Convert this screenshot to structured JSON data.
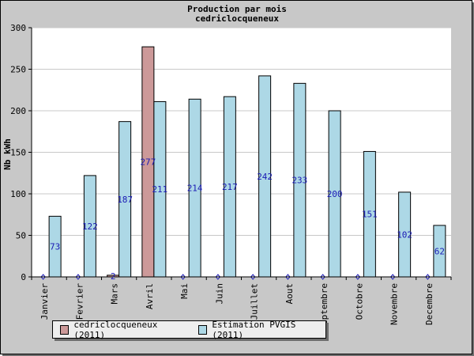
{
  "chart_data": {
    "type": "bar",
    "title": "Production par mois",
    "subtitle": "cedriclocqueneux",
    "ylabel": "Nb kWh",
    "xlabel": "",
    "ylim": [
      0,
      300
    ],
    "yticks": [
      0,
      50,
      100,
      150,
      200,
      250,
      300
    ],
    "grid": true,
    "legend_position": "bottom-left",
    "categories": [
      "Janvier",
      "Fevrier",
      "Mars",
      "Avril",
      "Mai",
      "Juin",
      "Juillet",
      "Aout",
      "Septembre",
      "Octobre",
      "Novembre",
      "Decembre"
    ],
    "series": [
      {
        "name": "cedriclocqueneux (2011)",
        "color": "#cc9999",
        "values": [
          0,
          0,
          2,
          277,
          0,
          0,
          0,
          0,
          0,
          0,
          0,
          0
        ],
        "labels": [
          "",
          "",
          "2",
          "277",
          "",
          "",
          "",
          "",
          "",
          "",
          "",
          ""
        ]
      },
      {
        "name": "Estimation PVGIS (2011)",
        "color": "#add8e6",
        "values": [
          73,
          122,
          187,
          211,
          214,
          217,
          242,
          233,
          200,
          151,
          102,
          62
        ],
        "labels": [
          "73",
          "122",
          "187",
          "211",
          "214",
          "217",
          "242",
          "233",
          "200",
          "151",
          "102",
          "62"
        ]
      }
    ]
  }
}
